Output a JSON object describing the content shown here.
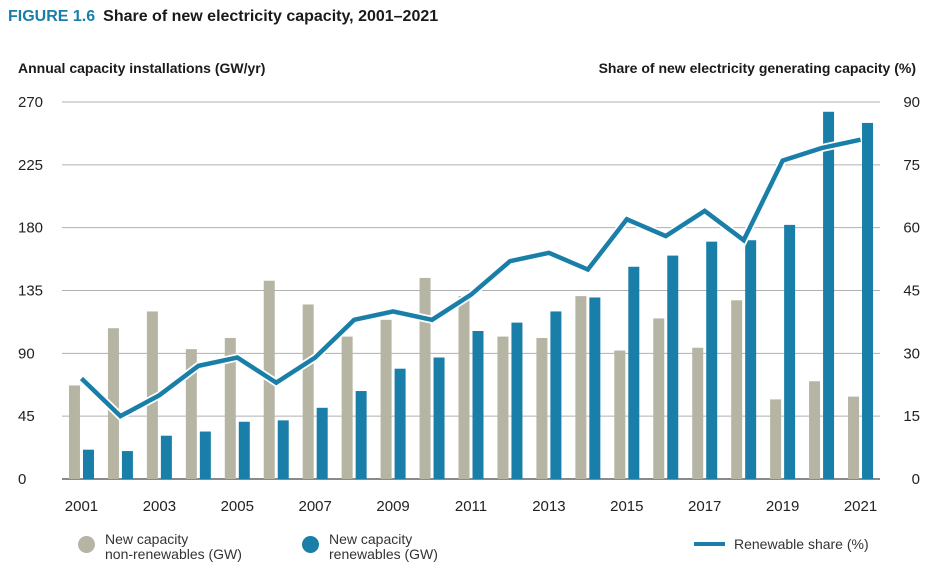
{
  "figure_label": "FIGURE 1.6",
  "chart_data": {
    "type": "bar",
    "title": "Share of new electricity capacity, 2001–2021",
    "ylabel_left": "Annual capacity installations (GW/yr)",
    "ylabel_right": "Share of new electricity generating capacity (%)",
    "ylim_left": [
      0,
      270
    ],
    "ylim_right": [
      0,
      90
    ],
    "left_ticks": [
      "0",
      "45",
      "90",
      "135",
      "180",
      "225",
      "270"
    ],
    "right_ticks": [
      "0",
      "15",
      "30",
      "45",
      "60",
      "75",
      "90"
    ],
    "categories": [
      "2001",
      "2002",
      "2003",
      "2004",
      "2005",
      "2006",
      "2007",
      "2008",
      "2009",
      "2010",
      "2011",
      "2012",
      "2013",
      "2014",
      "2015",
      "2016",
      "2017",
      "2018",
      "2019",
      "2020",
      "2021"
    ],
    "x_tick_labels": [
      "2001",
      "2003",
      "2005",
      "2007",
      "2009",
      "2011",
      "2013",
      "2015",
      "2017",
      "2019",
      "2021"
    ],
    "series": [
      {
        "name": "New capacity non-renewables (GW)",
        "type": "bar",
        "color": "#b6b5a4",
        "values": [
          67,
          108,
          120,
          93,
          101,
          142,
          125,
          102,
          114,
          144,
          131,
          102,
          101,
          131,
          92,
          115,
          94,
          128,
          57,
          70,
          59
        ]
      },
      {
        "name": "New capacity renewables (GW)",
        "type": "bar",
        "color": "#1a7fa8",
        "values": [
          21,
          20,
          31,
          34,
          41,
          42,
          51,
          63,
          79,
          87,
          106,
          112,
          120,
          130,
          152,
          160,
          170,
          171,
          182,
          263,
          255
        ]
      },
      {
        "name": "Renewable share (%)",
        "type": "line",
        "axis": "right",
        "color": "#1a7fa8",
        "values": [
          24,
          15,
          20,
          27,
          29,
          23,
          29,
          38,
          40,
          38,
          44,
          52,
          54,
          50,
          62,
          58,
          64,
          57,
          76,
          79,
          81
        ]
      }
    ],
    "legend": [
      {
        "line1": "New capacity",
        "line2": "non-renewables (GW)"
      },
      {
        "line1": "New capacity",
        "line2": "renewables (GW)"
      },
      {
        "line1": "Renewable share (%)"
      }
    ]
  }
}
